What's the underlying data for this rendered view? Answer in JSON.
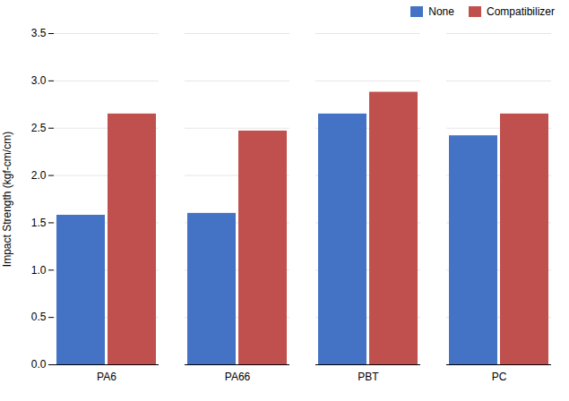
{
  "chart_data": {
    "type": "bar",
    "categories": [
      "PA6",
      "PA66",
      "PBT",
      "PC"
    ],
    "series": [
      {
        "name": "None",
        "color": "#4472C4",
        "values": [
          1.58,
          1.6,
          2.65,
          2.42
        ]
      },
      {
        "name": "Compatibilizer",
        "color": "#C0504D",
        "values": [
          2.65,
          2.47,
          2.88,
          2.65
        ]
      }
    ],
    "ylabel": "Impact Strength (kgf-cm/cm)",
    "ylim": [
      0,
      3.5
    ],
    "yticks": [
      {
        "value": 0,
        "label": "0.0"
      },
      0.5,
      {
        "value": 1,
        "label": "1.0"
      },
      1.5,
      {
        "value": 2,
        "label": "2.0"
      },
      2.5,
      {
        "value": 3,
        "label": "3.0"
      },
      3.5
    ],
    "grid": true,
    "legend": "upper right"
  }
}
